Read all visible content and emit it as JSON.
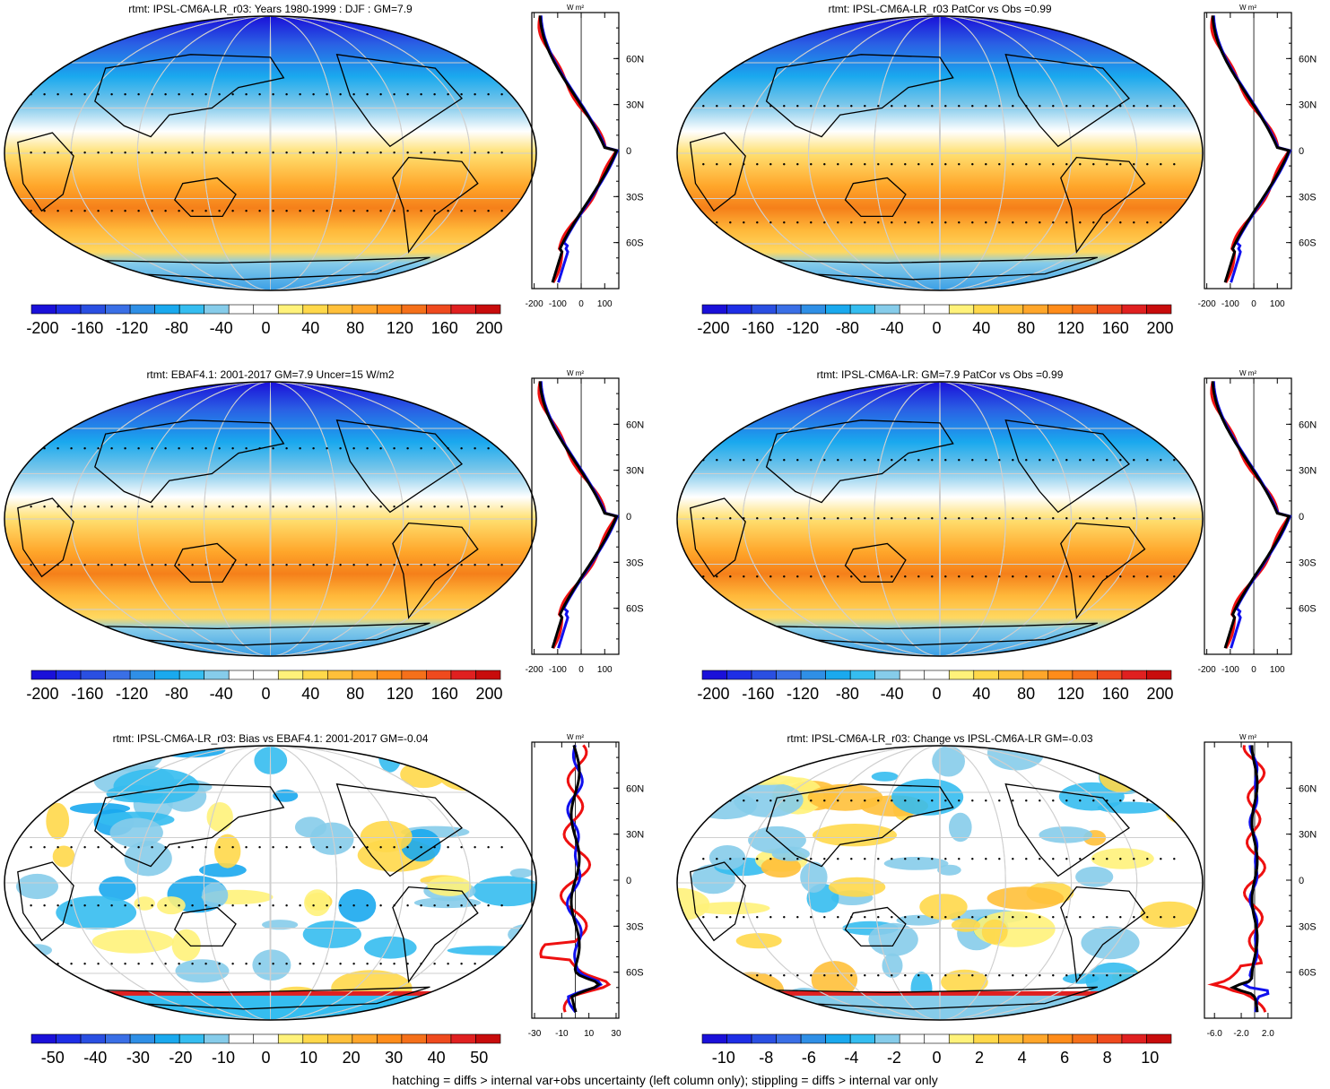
{
  "footer": "hatching = diffs > internal var+obs uncertainty (left column only); stippling = diffs > internal var only",
  "panels": [
    {
      "title": "rtmt: IPSL-CM6A-LR_r03: Years 1980-1999 : DJF : GM=7.9",
      "kind": "abs",
      "colorbar": {
        "min": -210,
        "max": 210,
        "labels": [
          "-200",
          "-160",
          "-120",
          "-80",
          "-40",
          "0",
          "40",
          "80",
          "120",
          "160",
          "200"
        ]
      },
      "profile": {
        "unit": "W m²",
        "xmin": -210,
        "xmax": 160,
        "xticks": [
          "-200",
          "-100",
          "0",
          "100"
        ],
        "xtick_values": [
          -200,
          -100,
          0,
          100
        ],
        "yticks": [
          "60N",
          "30N",
          "0",
          "30S",
          "60S"
        ],
        "ytick_values": [
          60,
          30,
          0,
          -30,
          -60
        ]
      }
    },
    {
      "title": "rtmt: IPSL-CM6A-LR_r03 PatCor vs Obs =0.99",
      "kind": "abs",
      "colorbar": {
        "min": -210,
        "max": 210,
        "labels": [
          "-200",
          "-160",
          "-120",
          "-80",
          "-40",
          "0",
          "40",
          "80",
          "120",
          "160",
          "200"
        ]
      },
      "profile": {
        "unit": "W m²",
        "xmin": -210,
        "xmax": 160,
        "xticks": [
          "-200",
          "-100",
          "0",
          "100"
        ],
        "xtick_values": [
          -200,
          -100,
          0,
          100
        ],
        "yticks": [
          "60N",
          "30N",
          "0",
          "30S",
          "60S"
        ],
        "ytick_values": [
          60,
          30,
          0,
          -30,
          -60
        ]
      }
    },
    {
      "title": "rtmt: EBAF4.1: 2001-2017 GM=7.9 Uncer=15 W/m2",
      "kind": "abs",
      "colorbar": {
        "min": -210,
        "max": 210,
        "labels": [
          "-200",
          "-160",
          "-120",
          "-80",
          "-40",
          "0",
          "40",
          "80",
          "120",
          "160",
          "200"
        ]
      },
      "profile": {
        "unit": "W m²",
        "xmin": -210,
        "xmax": 160,
        "xticks": [
          "-200",
          "-100",
          "0",
          "100"
        ],
        "xtick_values": [
          -200,
          -100,
          0,
          100
        ],
        "yticks": [
          "60N",
          "30N",
          "0",
          "30S",
          "60S"
        ],
        "ytick_values": [
          60,
          30,
          0,
          -30,
          -60
        ]
      }
    },
    {
      "title": "rtmt: IPSL-CM6A-LR: GM=7.9 PatCor vs Obs =0.99",
      "kind": "abs",
      "colorbar": {
        "min": -210,
        "max": 210,
        "labels": [
          "-200",
          "-160",
          "-120",
          "-80",
          "-40",
          "0",
          "40",
          "80",
          "120",
          "160",
          "200"
        ]
      },
      "profile": {
        "unit": "W m²",
        "xmin": -210,
        "xmax": 160,
        "xticks": [
          "-200",
          "-100",
          "0",
          "100"
        ],
        "xtick_values": [
          -200,
          -100,
          0,
          100
        ],
        "yticks": [
          "60N",
          "30N",
          "0",
          "30S",
          "60S"
        ],
        "ytick_values": [
          60,
          30,
          0,
          -30,
          -60
        ]
      }
    },
    {
      "title": "rtmt: IPSL-CM6A-LR_r03: Bias vs EBAF4.1: 2001-2017 GM=-0.04",
      "kind": "bias",
      "colorbar": {
        "min": -55,
        "max": 55,
        "labels": [
          "-50",
          "-40",
          "-30",
          "-20",
          "-10",
          "0",
          "10",
          "20",
          "30",
          "40",
          "50"
        ]
      },
      "profile": {
        "unit": "W m²",
        "xmin": -32,
        "xmax": 32,
        "xticks": [
          "-30",
          "-10",
          "10",
          "30"
        ],
        "xtick_values": [
          -30,
          -10,
          10,
          30
        ],
        "yticks": [
          "60N",
          "30N",
          "0",
          "30S",
          "60S"
        ],
        "ytick_values": [
          60,
          30,
          0,
          -30,
          -60
        ]
      }
    },
    {
      "title": "rtmt: IPSL-CM6A-LR_r03: Change vs IPSL-CM6A-LR GM=-0.03",
      "kind": "change",
      "colorbar": {
        "min": -11,
        "max": 11,
        "labels": [
          "-10",
          "-8",
          "-6",
          "-4",
          "-2",
          "0",
          "2",
          "4",
          "6",
          "8",
          "10"
        ]
      },
      "profile": {
        "unit": "W m²",
        "xmin": -7.5,
        "xmax": 5.5,
        "xticks": [
          "-6.0",
          "-2.0",
          "2.0"
        ],
        "xtick_values": [
          -6,
          -2,
          2
        ],
        "yticks": [
          "60N",
          "30N",
          "0",
          "30S",
          "60S"
        ],
        "ytick_values": [
          60,
          30,
          0,
          -30,
          -60
        ]
      }
    }
  ]
}
